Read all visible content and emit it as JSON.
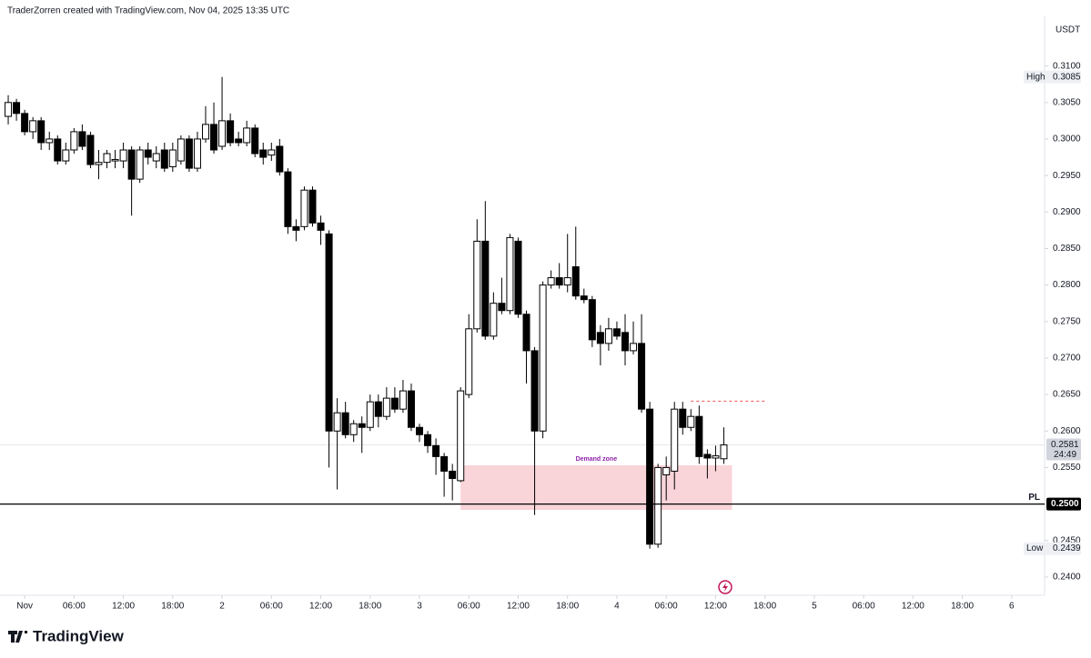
{
  "chart_data": {
    "type": "candlestick",
    "header": "TraderZorren created with TradingView.com, Nov 04, 2025 13:35 UTC",
    "brand": "TradingView",
    "currency": "USDT",
    "up_color": "#ffffff",
    "down_color": "#000000",
    "grid": false,
    "x": [
      "Oct 31 22:00",
      "Oct 31 23:00",
      "Nov 1 00:00",
      "Nov 1 01:00",
      "Nov 1 02:00",
      "Nov 1 03:00",
      "Nov 1 04:00",
      "Nov 1 05:00",
      "Nov 1 06:00",
      "Nov 1 07:00",
      "Nov 1 08:00",
      "Nov 1 09:00",
      "Nov 1 10:00",
      "Nov 1 11:00",
      "Nov 1 12:00",
      "Nov 1 13:00",
      "Nov 1 14:00",
      "Nov 1 15:00",
      "Nov 1 16:00",
      "Nov 1 17:00",
      "Nov 1 18:00",
      "Nov 1 19:00",
      "Nov 1 20:00",
      "Nov 1 21:00",
      "Nov 1 22:00",
      "Nov 1 23:00",
      "Nov 2 00:00",
      "Nov 2 01:00",
      "Nov 2 02:00",
      "Nov 2 03:00",
      "Nov 2 04:00",
      "Nov 2 05:00",
      "Nov 2 06:00",
      "Nov 2 07:00",
      "Nov 2 08:00",
      "Nov 2 09:00",
      "Nov 2 10:00",
      "Nov 2 11:00",
      "Nov 2 12:00",
      "Nov 2 13:00",
      "Nov 2 14:00",
      "Nov 2 15:00",
      "Nov 2 16:00",
      "Nov 2 17:00",
      "Nov 2 18:00",
      "Nov 2 19:00",
      "Nov 2 20:00",
      "Nov 2 21:00",
      "Nov 2 22:00",
      "Nov 2 23:00",
      "Nov 3 00:00",
      "Nov 3 01:00",
      "Nov 3 02:00",
      "Nov 3 03:00",
      "Nov 3 04:00",
      "Nov 3 05:00",
      "Nov 3 06:00",
      "Nov 3 07:00",
      "Nov 3 08:00",
      "Nov 3 09:00",
      "Nov 3 10:00",
      "Nov 3 11:00",
      "Nov 3 12:00",
      "Nov 3 13:00",
      "Nov 3 14:00",
      "Nov 3 15:00",
      "Nov 3 16:00",
      "Nov 3 17:00",
      "Nov 3 18:00",
      "Nov 3 19:00",
      "Nov 3 20:00",
      "Nov 3 21:00",
      "Nov 3 22:00",
      "Nov 3 23:00",
      "Nov 4 00:00",
      "Nov 4 01:00",
      "Nov 4 02:00",
      "Nov 4 03:00",
      "Nov 4 04:00",
      "Nov 4 05:00",
      "Nov 4 06:00",
      "Nov 4 07:00",
      "Nov 4 08:00",
      "Nov 4 09:00",
      "Nov 4 10:00",
      "Nov 4 11:00",
      "Nov 4 12:00",
      "Nov 4 13:00"
    ],
    "open": [
      0.3031,
      0.305,
      0.3035,
      0.301,
      0.3025,
      0.2995,
      0.3,
      0.297,
      0.2985,
      0.301,
      0.3005,
      0.2965,
      0.2968,
      0.297,
      0.297,
      0.2985,
      0.2945,
      0.2985,
      0.297,
      0.2985,
      0.2962,
      0.297,
      0.3,
      0.296,
      0.3,
      0.302,
      0.299,
      0.3025,
      0.3,
      0.2995,
      0.3015,
      0.2985,
      0.2978,
      0.299,
      0.2955,
      0.288,
      0.288,
      0.293,
      0.2885,
      0.287,
      0.26,
      0.2625,
      0.2595,
      0.261,
      0.2605,
      0.264,
      0.262,
      0.2645,
      0.263,
      0.2655,
      0.2605,
      0.2595,
      0.258,
      0.2565,
      0.2545,
      0.2532,
      0.265,
      0.274,
      0.286,
      0.273,
      0.2775,
      0.2765,
      0.286,
      0.276,
      0.271,
      0.26,
      0.28,
      0.281,
      0.28,
      0.2825,
      0.2785,
      0.278,
      0.2735,
      0.272,
      0.274,
      0.2735,
      0.271,
      0.272,
      0.263,
      0.2445,
      0.254,
      0.2545,
      0.263,
      0.2605,
      0.262,
      0.2568,
      0.2563,
      0.2562
    ],
    "high": [
      0.306,
      0.3055,
      0.304,
      0.303,
      0.303,
      0.301,
      0.3005,
      0.2995,
      0.3015,
      0.302,
      0.301,
      0.2985,
      0.2985,
      0.2985,
      0.2995,
      0.299,
      0.299,
      0.2995,
      0.299,
      0.2995,
      0.2995,
      0.3005,
      0.3005,
      0.301,
      0.3045,
      0.305,
      0.3085,
      0.3035,
      0.301,
      0.3025,
      0.302,
      0.2995,
      0.2995,
      0.3,
      0.296,
      0.289,
      0.2935,
      0.2935,
      0.2895,
      0.2875,
      0.2645,
      0.264,
      0.2615,
      0.262,
      0.265,
      0.265,
      0.266,
      0.266,
      0.267,
      0.2665,
      0.261,
      0.26,
      0.259,
      0.257,
      0.2555,
      0.266,
      0.276,
      0.289,
      0.2915,
      0.279,
      0.281,
      0.287,
      0.2865,
      0.2765,
      0.2715,
      0.2805,
      0.282,
      0.283,
      0.287,
      0.288,
      0.2795,
      0.2785,
      0.2745,
      0.2755,
      0.275,
      0.276,
      0.275,
      0.276,
      0.264,
      0.2555,
      0.2565,
      0.264,
      0.264,
      0.263,
      0.2635,
      0.2575,
      0.258,
      0.2605
    ],
    "low": [
      0.302,
      0.3025,
      0.3005,
      0.3,
      0.2985,
      0.2985,
      0.2965,
      0.2965,
      0.298,
      0.2985,
      0.296,
      0.2945,
      0.296,
      0.296,
      0.296,
      0.2895,
      0.294,
      0.2965,
      0.296,
      0.2955,
      0.2955,
      0.2965,
      0.2955,
      0.2955,
      0.2995,
      0.298,
      0.2985,
      0.299,
      0.299,
      0.299,
      0.2975,
      0.2965,
      0.297,
      0.295,
      0.287,
      0.286,
      0.2875,
      0.288,
      0.2855,
      0.255,
      0.252,
      0.259,
      0.2585,
      0.257,
      0.26,
      0.2605,
      0.2615,
      0.2625,
      0.2625,
      0.26,
      0.2585,
      0.257,
      0.254,
      0.251,
      0.2505,
      0.253,
      0.2645,
      0.2735,
      0.2725,
      0.2725,
      0.276,
      0.276,
      0.2755,
      0.2665,
      0.2485,
      0.259,
      0.2795,
      0.2795,
      0.279,
      0.278,
      0.2775,
      0.2715,
      0.269,
      0.271,
      0.2725,
      0.269,
      0.2705,
      0.2625,
      0.2439,
      0.244,
      0.2505,
      0.252,
      0.2595,
      0.26,
      0.2555,
      0.2535,
      0.2545,
      0.2555
    ],
    "close": [
      0.305,
      0.3035,
      0.301,
      0.3025,
      0.2995,
      0.3,
      0.297,
      0.2985,
      0.301,
      0.299,
      0.2965,
      0.2968,
      0.298,
      0.2972,
      0.2985,
      0.2945,
      0.2985,
      0.2975,
      0.298,
      0.296,
      0.2985,
      0.3,
      0.296,
      0.3,
      0.302,
      0.2985,
      0.3025,
      0.2995,
      0.2995,
      0.3015,
      0.298,
      0.2975,
      0.2985,
      0.2955,
      0.288,
      0.2875,
      0.293,
      0.2885,
      0.2875,
      0.26,
      0.2625,
      0.2595,
      0.261,
      0.2605,
      0.264,
      0.262,
      0.2645,
      0.263,
      0.2655,
      0.2605,
      0.2595,
      0.258,
      0.2565,
      0.2545,
      0.2535,
      0.2655,
      0.274,
      0.286,
      0.273,
      0.2775,
      0.2765,
      0.2865,
      0.276,
      0.271,
      0.26,
      0.28,
      0.281,
      0.28,
      0.281,
      0.2785,
      0.278,
      0.2725,
      0.272,
      0.274,
      0.273,
      0.271,
      0.272,
      0.263,
      0.2445,
      0.255,
      0.255,
      0.263,
      0.2605,
      0.262,
      0.2565,
      0.2563,
      0.2566,
      0.2581
    ],
    "xlim": [
      "Oct 31 21:00",
      "Nov 6 04:00"
    ],
    "xticks": [
      {
        "value": "Nov 1 00:00",
        "label": "Nov"
      },
      {
        "value": "Nov 1 06:00",
        "label": "06:00"
      },
      {
        "value": "Nov 1 12:00",
        "label": "12:00"
      },
      {
        "value": "Nov 1 18:00",
        "label": "18:00"
      },
      {
        "value": "Nov 2 00:00",
        "label": "2"
      },
      {
        "value": "Nov 2 06:00",
        "label": "06:00"
      },
      {
        "value": "Nov 2 12:00",
        "label": "12:00"
      },
      {
        "value": "Nov 2 18:00",
        "label": "18:00"
      },
      {
        "value": "Nov 3 00:00",
        "label": "3"
      },
      {
        "value": "Nov 3 06:00",
        "label": "06:00"
      },
      {
        "value": "Nov 3 12:00",
        "label": "12:00"
      },
      {
        "value": "Nov 3 18:00",
        "label": "18:00"
      },
      {
        "value": "Nov 4 00:00",
        "label": "4"
      },
      {
        "value": "Nov 4 06:00",
        "label": "06:00"
      },
      {
        "value": "Nov 4 12:00",
        "label": "12:00"
      },
      {
        "value": "Nov 4 18:00",
        "label": "18:00"
      },
      {
        "value": "Nov 5 00:00",
        "label": "5"
      },
      {
        "value": "Nov 5 06:00",
        "label": "06:00"
      },
      {
        "value": "Nov 5 12:00",
        "label": "12:00"
      },
      {
        "value": "Nov 5 18:00",
        "label": "18:00"
      },
      {
        "value": "Nov 6 00:00",
        "label": "6"
      }
    ],
    "ylim": [
      0.2375,
      0.3168
    ],
    "yticks": [
      {
        "value": 0.31,
        "label": "0.3100"
      },
      {
        "value": 0.305,
        "label": "0.3050"
      },
      {
        "value": 0.3,
        "label": "0.3000"
      },
      {
        "value": 0.295,
        "label": "0.2950"
      },
      {
        "value": 0.29,
        "label": "0.2900"
      },
      {
        "value": 0.285,
        "label": "0.2850"
      },
      {
        "value": 0.28,
        "label": "0.2800"
      },
      {
        "value": 0.275,
        "label": "0.2750"
      },
      {
        "value": 0.27,
        "label": "0.2700"
      },
      {
        "value": 0.265,
        "label": "0.2650"
      },
      {
        "value": 0.26,
        "label": "0.2600"
      },
      {
        "value": 0.255,
        "label": "0.2550"
      },
      {
        "value": 0.245,
        "label": "0.2450"
      },
      {
        "value": 0.24,
        "label": "0.2400"
      }
    ],
    "high_marker": {
      "label": "High",
      "value": 0.3085
    },
    "low_marker": {
      "label": "Low",
      "value": 0.2439
    },
    "last_price": {
      "value": 0.2581,
      "countdown": "24:49"
    },
    "pl_line": {
      "label": "PL",
      "value": {
        "value": 0.25,
        "label": "0.2500"
      }
    },
    "demand_zone": {
      "label": "Demand zone",
      "x": [
        "Nov 3 05:00",
        "Nov 4 14:00"
      ],
      "y": [
        0.2492,
        0.2553
      ]
    },
    "target_line": {
      "value": 0.2641,
      "x": [
        "Nov 4 09:00",
        "Nov 4 18:00"
      ]
    }
  }
}
